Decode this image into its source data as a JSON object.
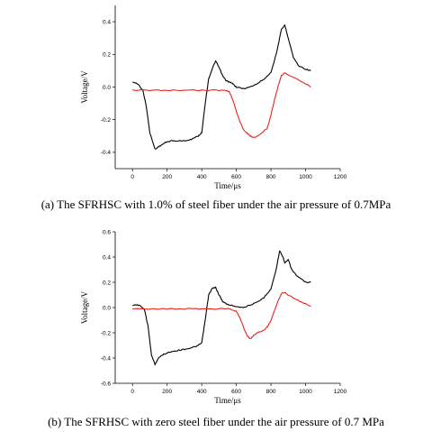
{
  "captions": {
    "a": "(a) The SFRHSC with 1.0% of steel fiber under the air pressure of 0.7MPa",
    "b": "(b) The SFRHSC with zero steel fiber under the air pressure of 0.7 MPa"
  },
  "colors": {
    "series1": "#000000",
    "series2": "#e8231e"
  },
  "chart_data": [
    {
      "type": "line",
      "title": "",
      "xlabel": "Time/μs",
      "ylabel": "Voltage/V",
      "xlim": [
        -100,
        1200
      ],
      "ylim": [
        -0.5,
        0.5
      ],
      "xticks": [
        0,
        200,
        400,
        600,
        800,
        1000,
        1200
      ],
      "yticks": [
        -0.4,
        -0.2,
        0.0,
        0.2,
        0.4
      ],
      "ytick_labels": [
        "-0.4",
        "-0.2",
        "0.0",
        "0.2",
        "0.4"
      ],
      "grid": false,
      "series": [
        {
          "color": "#000000",
          "x": [
            0,
            30,
            60,
            80,
            100,
            130,
            160,
            190,
            220,
            260,
            300,
            340,
            380,
            400,
            420,
            440,
            460,
            480,
            500,
            520,
            540,
            560,
            580,
            600,
            640,
            680,
            720,
            760,
            800,
            830,
            860,
            880,
            900,
            930,
            960,
            1000,
            1030
          ],
          "y": [
            0.03,
            0.02,
            -0.02,
            -0.12,
            -0.28,
            -0.38,
            -0.36,
            -0.34,
            -0.33,
            -0.33,
            -0.33,
            -0.32,
            -0.3,
            -0.28,
            -0.1,
            0.05,
            0.11,
            0.16,
            0.12,
            0.07,
            0.04,
            0.03,
            0.02,
            0.0,
            -0.01,
            0.0,
            0.02,
            0.05,
            0.09,
            0.2,
            0.35,
            0.38,
            0.3,
            0.18,
            0.13,
            0.11,
            0.1
          ]
        },
        {
          "color": "#e8231e",
          "x": [
            0,
            100,
            200,
            300,
            400,
            500,
            540,
            560,
            580,
            600,
            620,
            640,
            660,
            680,
            700,
            740,
            780,
            800,
            820,
            840,
            860,
            880,
            900,
            950,
            1000,
            1030
          ],
          "y": [
            -0.02,
            -0.02,
            -0.02,
            -0.02,
            -0.02,
            -0.02,
            -0.02,
            -0.03,
            -0.08,
            -0.15,
            -0.21,
            -0.26,
            -0.28,
            -0.3,
            -0.31,
            -0.29,
            -0.25,
            -0.17,
            -0.08,
            0.0,
            0.07,
            0.09,
            0.07,
            0.05,
            0.02,
            0.0
          ]
        }
      ]
    },
    {
      "type": "line",
      "title": "",
      "xlabel": "Time/μs",
      "ylabel": "Voltage/V",
      "xlim": [
        -100,
        1200
      ],
      "ylim": [
        -0.6,
        0.6
      ],
      "xticks": [
        0,
        200,
        400,
        600,
        800,
        1000,
        1200
      ],
      "yticks": [
        -0.6,
        -0.4,
        -0.2,
        0.0,
        0.2,
        0.4,
        0.6
      ],
      "ytick_labels": [
        "-0.6",
        "-0.4",
        "-0.2",
        "0.0",
        "0.2",
        "0.4",
        "0.6"
      ],
      "grid": false,
      "series": [
        {
          "color": "#000000",
          "x": [
            0,
            40,
            70,
            90,
            110,
            130,
            150,
            180,
            220,
            260,
            300,
            340,
            380,
            400,
            420,
            440,
            460,
            480,
            500,
            520,
            540,
            560,
            600,
            640,
            680,
            720,
            760,
            800,
            830,
            850,
            870,
            880,
            900,
            920,
            950,
            980,
            1000,
            1030
          ],
          "y": [
            0.02,
            0.02,
            -0.02,
            -0.15,
            -0.38,
            -0.45,
            -0.4,
            -0.37,
            -0.35,
            -0.34,
            -0.33,
            -0.32,
            -0.3,
            -0.28,
            -0.1,
            0.1,
            0.15,
            0.16,
            0.1,
            0.05,
            0.03,
            0.02,
            0.01,
            0.0,
            0.02,
            0.04,
            0.08,
            0.15,
            0.3,
            0.45,
            0.4,
            0.35,
            0.38,
            0.3,
            0.25,
            0.22,
            0.2,
            0.2
          ]
        },
        {
          "color": "#e8231e",
          "x": [
            0,
            100,
            200,
            300,
            400,
            500,
            560,
            600,
            620,
            640,
            660,
            680,
            700,
            720,
            760,
            780,
            800,
            820,
            840,
            860,
            880,
            900,
            950,
            1000,
            1030
          ],
          "y": [
            -0.01,
            -0.01,
            -0.01,
            -0.01,
            -0.01,
            -0.01,
            -0.01,
            -0.03,
            -0.08,
            -0.15,
            -0.22,
            -0.25,
            -0.22,
            -0.2,
            -0.18,
            -0.15,
            -0.1,
            -0.03,
            0.05,
            0.11,
            0.12,
            0.1,
            0.06,
            0.03,
            0.01
          ]
        }
      ]
    }
  ]
}
